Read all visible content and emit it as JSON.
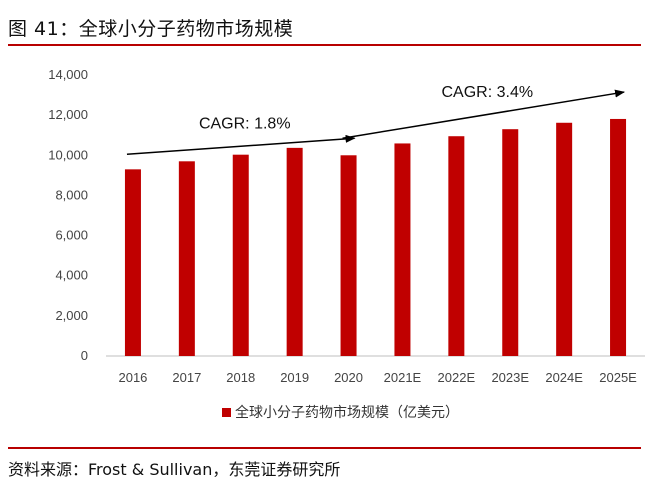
{
  "figure": {
    "title": "图 41：全球小分子药物市场规模",
    "source": "资料来源：Frost & Sullivan，东莞证券研究所"
  },
  "colors": {
    "bar": "#c00000",
    "rule": "#b80000",
    "arrow": "#000000"
  },
  "chart_data": {
    "type": "bar",
    "categories": [
      "2016",
      "2017",
      "2018",
      "2019",
      "2020",
      "2021E",
      "2022E",
      "2023E",
      "2024E",
      "2025E"
    ],
    "series": [
      {
        "name": "全球小分子药物市场规模（亿美元）",
        "values": [
          9300,
          9700,
          10030,
          10370,
          10000,
          10590,
          10950,
          11300,
          11620,
          11810
        ]
      }
    ],
    "ylim": [
      0,
      14000
    ],
    "yticks": [
      "0",
      "2,000",
      "4,000",
      "6,000",
      "8,000",
      "10,000",
      "12,000",
      "14,000"
    ],
    "ytick_values": [
      0,
      2000,
      4000,
      6000,
      8000,
      10000,
      12000,
      14000
    ],
    "grid": false,
    "legend_position": "bottom",
    "annotations": [
      {
        "text": "CAGR: 1.8%",
        "from_index": 0,
        "to_index": 4,
        "from_value": 10050,
        "to_value": 10850
      },
      {
        "text": "CAGR: 3.4%",
        "from_index": 4,
        "to_index": 9,
        "from_value": 10850,
        "to_value": 13150
      }
    ]
  }
}
